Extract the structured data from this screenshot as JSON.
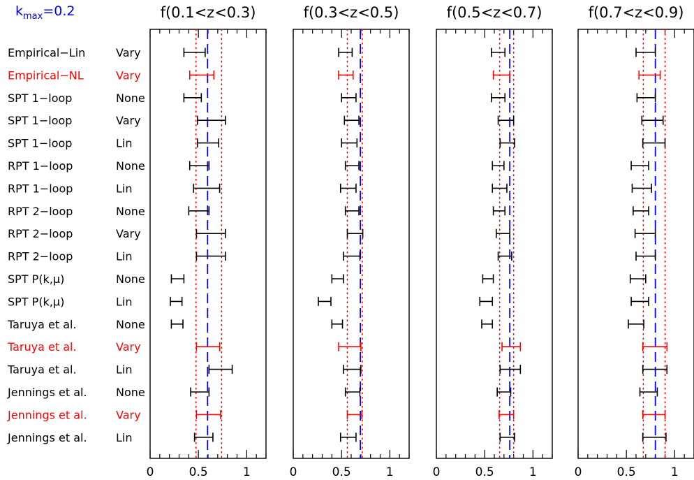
{
  "figure": {
    "kmax_label": {
      "prefix": "k",
      "subscript": "max",
      "suffix": "=0.2",
      "color": "#0000ff"
    },
    "row_labels": [
      {
        "method": "Empirical−Lin",
        "bias": "Vary",
        "color": "#000000"
      },
      {
        "method": "Empirical−NL",
        "bias": "Vary",
        "color": "#ff0000"
      },
      {
        "method": "SPT 1−loop",
        "bias": "None",
        "color": "#000000"
      },
      {
        "method": "SPT 1−loop",
        "bias": "Vary",
        "color": "#000000"
      },
      {
        "method": "SPT 1−loop",
        "bias": "Lin",
        "color": "#000000"
      },
      {
        "method": "RPT 1−loop",
        "bias": "None",
        "color": "#000000"
      },
      {
        "method": "RPT 1−loop",
        "bias": "Lin",
        "color": "#000000"
      },
      {
        "method": "RPT 2−loop",
        "bias": "None",
        "color": "#000000"
      },
      {
        "method": "RPT 2−loop",
        "bias": "Vary",
        "color": "#000000"
      },
      {
        "method": "RPT 2−loop",
        "bias": "Lin",
        "color": "#000000"
      },
      {
        "method": "SPT P(k,μ)",
        "bias": "None",
        "color": "#000000"
      },
      {
        "method": "SPT P(k,μ)",
        "bias": "Lin",
        "color": "#000000"
      },
      {
        "method": "Taruya et al.",
        "bias": "None",
        "color": "#000000"
      },
      {
        "method": "Taruya et al.",
        "bias": "Vary",
        "color": "#ff0000"
      },
      {
        "method": "Taruya et al.",
        "bias": "Lin",
        "color": "#000000"
      },
      {
        "method": "Jennings et al.",
        "bias": "None",
        "color": "#000000"
      },
      {
        "method": "Jennings et al.",
        "bias": "Vary",
        "color": "#ff0000"
      },
      {
        "method": "Jennings et al.",
        "bias": "Lin",
        "color": "#000000"
      }
    ]
  },
  "chart_data": [
    {
      "type": "errorbar",
      "title": "f(0.1<z<0.3)",
      "xlim": [
        0,
        1.2
      ],
      "x_ticks": [
        0,
        0.5,
        1
      ],
      "x_tick_labels": [
        "0",
        "0.5",
        "1"
      ],
      "true_value": 0.595,
      "band": [
        0.475,
        0.74
      ],
      "intervals": [
        [
          0.35,
          0.57
        ],
        [
          0.41,
          0.66
        ],
        [
          0.35,
          0.53
        ],
        [
          0.49,
          0.78
        ],
        [
          0.49,
          0.71
        ],
        [
          0.41,
          0.61
        ],
        [
          0.45,
          0.72
        ],
        [
          0.4,
          0.61
        ],
        [
          0.48,
          0.78
        ],
        [
          0.48,
          0.78
        ],
        [
          0.22,
          0.35
        ],
        [
          0.21,
          0.33
        ],
        [
          0.22,
          0.34
        ],
        [
          0.48,
          0.72
        ],
        [
          0.61,
          0.85
        ],
        [
          0.42,
          0.61
        ],
        [
          0.48,
          0.73
        ],
        [
          0.46,
          0.65
        ]
      ]
    },
    {
      "type": "errorbar",
      "title": "f(0.3<z<0.5)",
      "xlim": [
        0,
        1.2
      ],
      "x_ticks": [
        0,
        0.5,
        1
      ],
      "x_tick_labels": [
        "0",
        "0.5",
        "1"
      ],
      "true_value": 0.695,
      "band": [
        0.56,
        0.715
      ],
      "intervals": [
        [
          0.47,
          0.61
        ],
        [
          0.47,
          0.62
        ],
        [
          0.5,
          0.65
        ],
        [
          0.53,
          0.68
        ],
        [
          0.5,
          0.66
        ],
        [
          0.54,
          0.68
        ],
        [
          0.49,
          0.65
        ],
        [
          0.54,
          0.68
        ],
        [
          0.56,
          0.72
        ],
        [
          0.52,
          0.69
        ],
        [
          0.4,
          0.52
        ],
        [
          0.26,
          0.39
        ],
        [
          0.4,
          0.51
        ],
        [
          0.47,
          0.7
        ],
        [
          0.52,
          0.7
        ],
        [
          0.54,
          0.69
        ],
        [
          0.56,
          0.71
        ],
        [
          0.49,
          0.65
        ]
      ]
    },
    {
      "type": "errorbar",
      "title": "f(0.5<z<0.7)",
      "xlim": [
        0,
        1.2
      ],
      "x_ticks": [
        0,
        0.5,
        1
      ],
      "x_tick_labels": [
        "0",
        "0.5",
        "1"
      ],
      "true_value": 0.76,
      "band": [
        0.655,
        0.8
      ],
      "intervals": [
        [
          0.57,
          0.71
        ],
        [
          0.59,
          0.76
        ],
        [
          0.57,
          0.71
        ],
        [
          0.64,
          0.8
        ],
        [
          0.66,
          0.81
        ],
        [
          0.58,
          0.7
        ],
        [
          0.58,
          0.73
        ],
        [
          0.59,
          0.71
        ],
        [
          0.62,
          0.76
        ],
        [
          0.64,
          0.78
        ],
        [
          0.48,
          0.59
        ],
        [
          0.45,
          0.58
        ],
        [
          0.47,
          0.58
        ],
        [
          0.68,
          0.87
        ],
        [
          0.66,
          0.87
        ],
        [
          0.63,
          0.77
        ],
        [
          0.65,
          0.8
        ],
        [
          0.66,
          0.81
        ]
      ]
    },
    {
      "type": "errorbar",
      "title": "f(0.7<z<0.9)",
      "xlim": [
        0,
        1.2
      ],
      "x_ticks": [
        0,
        0.5,
        1
      ],
      "x_tick_labels": [
        "0",
        "0.5",
        "1"
      ],
      "true_value": 0.8,
      "band": [
        0.675,
        0.9
      ],
      "intervals": [
        [
          0.6,
          0.8
        ],
        [
          0.63,
          0.85
        ],
        [
          0.61,
          0.8
        ],
        [
          0.66,
          0.88
        ],
        [
          0.67,
          0.9
        ],
        [
          0.55,
          0.73
        ],
        [
          0.56,
          0.76
        ],
        [
          0.57,
          0.73
        ],
        [
          0.59,
          0.8
        ],
        [
          0.6,
          0.8
        ],
        [
          0.54,
          0.7
        ],
        [
          0.55,
          0.73
        ],
        [
          0.52,
          0.68
        ],
        [
          0.67,
          0.92
        ],
        [
          0.67,
          0.92
        ],
        [
          0.64,
          0.82
        ],
        [
          0.67,
          0.9
        ],
        [
          0.67,
          0.91
        ]
      ]
    }
  ]
}
